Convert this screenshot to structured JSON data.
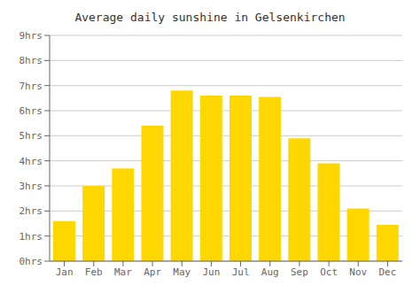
{
  "chart_data": {
    "type": "bar",
    "title": "Average daily sunshine in Gelsenkirchen",
    "categories": [
      "Jan",
      "Feb",
      "Mar",
      "Apr",
      "May",
      "Jun",
      "Jul",
      "Aug",
      "Sep",
      "Oct",
      "Nov",
      "Dec"
    ],
    "values": [
      1.6,
      3.0,
      3.7,
      5.4,
      6.8,
      6.6,
      6.6,
      6.55,
      4.9,
      3.9,
      2.1,
      1.45
    ],
    "color": "#FFD700",
    "ylim": [
      0,
      9
    ],
    "yticks": [
      {
        "value": 0,
        "label": "0hrs"
      },
      {
        "value": 1,
        "label": "1hrs"
      },
      {
        "value": 2,
        "label": "2hrs"
      },
      {
        "value": 3,
        "label": "3hrs"
      },
      {
        "value": 4,
        "label": "4hrs"
      },
      {
        "value": 5,
        "label": "5hrs"
      },
      {
        "value": 6,
        "label": "6hrs"
      },
      {
        "value": 7,
        "label": "7hrs"
      },
      {
        "value": 8,
        "label": "8hrs"
      },
      {
        "value": 9,
        "label": "9hrs"
      }
    ],
    "grid": true
  }
}
